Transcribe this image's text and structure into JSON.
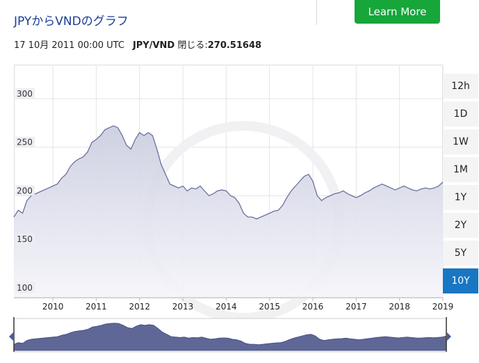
{
  "header": {
    "title": "JPYからVNDのグラフ",
    "learn_more": "Learn More",
    "timestamp": "17 10月 2011 00:00 UTC",
    "pair": "JPY/VND",
    "close_label": "閉じる:",
    "close_value": "270.51648"
  },
  "ranges": [
    "12h",
    "1D",
    "1W",
    "1M",
    "1Y",
    "2Y",
    "5Y",
    "10Y"
  ],
  "active_range": "10Y",
  "colors": {
    "line": "#6a6f9e",
    "fill_top": "#c9ccdf",
    "fill_bottom": "#f5f5fa",
    "active": "#1976c2",
    "button": "#16a63a",
    "navigator": "#5f6796"
  },
  "chart_data": {
    "type": "area",
    "title": "",
    "xlabel": "",
    "ylabel": "",
    "x_ticks": [
      "2010",
      "2011",
      "2012",
      "2013",
      "2014",
      "2015",
      "2016",
      "2017",
      "2018",
      "2019"
    ],
    "y_ticks": [
      100,
      150,
      200,
      250,
      300
    ],
    "xlim": [
      2009.1,
      2019.0
    ],
    "ylim": [
      95,
      335
    ],
    "grid": true,
    "series": [
      {
        "x": [
          2009.1,
          2009.2,
          2009.3,
          2009.4,
          2009.5,
          2009.6,
          2009.75,
          2009.9,
          2010.0,
          2010.1,
          2010.2,
          2010.3,
          2010.4,
          2010.5,
          2010.6,
          2010.7,
          2010.8,
          2010.9,
          2011.0,
          2011.1,
          2011.2,
          2011.3,
          2011.4,
          2011.5,
          2011.6,
          2011.7,
          2011.8,
          2011.9,
          2012.0,
          2012.1,
          2012.2,
          2012.3,
          2012.4,
          2012.5,
          2012.6,
          2012.7,
          2012.8,
          2012.9,
          2013.0,
          2013.1,
          2013.2,
          2013.3,
          2013.4,
          2013.5,
          2013.6,
          2013.7,
          2013.8,
          2013.9,
          2014.0,
          2014.1,
          2014.2,
          2014.3,
          2014.4,
          2014.5,
          2014.6,
          2014.7,
          2014.8,
          2014.9,
          2015.0,
          2015.1,
          2015.2,
          2015.3,
          2015.4,
          2015.5,
          2015.6,
          2015.7,
          2015.8,
          2015.9,
          2016.0,
          2016.1,
          2016.2,
          2016.3,
          2016.4,
          2016.5,
          2016.6,
          2016.7,
          2016.8,
          2016.9,
          2017.0,
          2017.1,
          2017.2,
          2017.3,
          2017.4,
          2017.5,
          2017.6,
          2017.7,
          2017.8,
          2017.9,
          2018.0,
          2018.1,
          2018.2,
          2018.3,
          2018.4,
          2018.5,
          2018.6,
          2018.7,
          2018.8,
          2018.9,
          2019.0
        ],
        "values": [
          178,
          185,
          182,
          195,
          200,
          202,
          205,
          208,
          210,
          212,
          218,
          222,
          230,
          235,
          238,
          240,
          245,
          255,
          258,
          262,
          268,
          270,
          272,
          270,
          262,
          252,
          248,
          258,
          265,
          262,
          265,
          262,
          248,
          232,
          222,
          212,
          210,
          208,
          210,
          205,
          208,
          207,
          210,
          205,
          200,
          202,
          205,
          206,
          205,
          200,
          198,
          192,
          182,
          178,
          178,
          176,
          178,
          180,
          182,
          184,
          185,
          190,
          198,
          205,
          210,
          215,
          220,
          222,
          215,
          200,
          195,
          198,
          200,
          202,
          203,
          205,
          202,
          200,
          198,
          200,
          203,
          205,
          208,
          210,
          212,
          210,
          208,
          206,
          208,
          210,
          208,
          206,
          205,
          207,
          208,
          207,
          208,
          210,
          214
        ]
      }
    ]
  }
}
